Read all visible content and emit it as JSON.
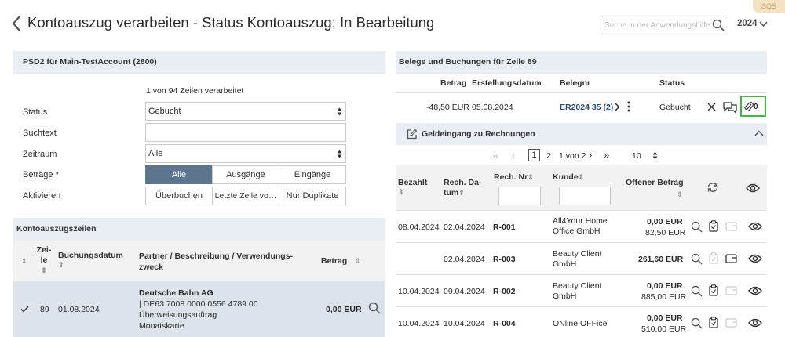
{
  "header": {
    "title": "Kontoauszug verarbeiten - Status Kontoauszug: In Bearbeitung",
    "search_placeholder": "Suche in der Anwendungshilfe",
    "year": "2024",
    "sos": "SOS"
  },
  "left_panel": {
    "title": "PSD2 für  Main-TestAccount (2800)",
    "progress": "1 von 94 Zeilen verarbeitet",
    "status_label": "Status",
    "status_value": "Gebucht",
    "suchtext_label": "Suchtext",
    "suchtext_value": "",
    "zeitraum_label": "Zeitraum",
    "zeitraum_value": "Alle",
    "betraege_label": "Beträge *",
    "betraege_options": [
      "Alle",
      "Ausgänge",
      "Eingänge"
    ],
    "betraege_selected": "Alle",
    "aktivieren_label": "Aktivieren",
    "aktivieren_buttons": [
      "Überbuchen",
      "Letzte Zeile vo…",
      "Nur Duplikate"
    ]
  },
  "kontoauszugszeilen": {
    "title": "Kontoauszugszeilen",
    "columns": {
      "zeile": "Zei-le",
      "buchungsdatum": "Buchungsdatum",
      "partner": "Partner / Beschreibung / Verwendungs-zweck",
      "betrag": "Betrag"
    },
    "row": {
      "zeile": "89",
      "datum": "01.08.2024",
      "partner": "Deutsche Bahn AG",
      "line2": "| DE63 7008 0000 0556 4789 00",
      "line3": "Überweisungsauftrag",
      "line4": "Monatskarte",
      "betrag": "0,00 EUR"
    }
  },
  "belege": {
    "title": "Belege und Buchungen für Zeile 89",
    "columns": {
      "betrag": "Betrag",
      "erstellungsdatum": "Erstellungsdatum",
      "belegnr": "Belegnr",
      "status": "Status"
    },
    "row": {
      "betrag": "-48,50 EUR",
      "datum": "05.08.2024",
      "belegnr": "ER2024 35 (2)",
      "status": "Gebucht",
      "attach_count": "0"
    }
  },
  "geldeingang": {
    "title": "Geldeingang zu Rechnungen",
    "pagination": {
      "page1": "1",
      "page2": "2",
      "page_of": "1 von 2",
      "page_size": "10"
    },
    "columns": {
      "bezahlt": "Bezahlt",
      "rech_datum": "Rech. Da-tum",
      "rech_nr": "Rech. Nr",
      "kunde": "Kunde",
      "offener_betrag": "Offener Betrag"
    },
    "rows": [
      {
        "bezahlt": "08.04.2024",
        "datum": "02.04.2024",
        "nr": "R-001",
        "kunde": "All4Your Home Office GmbH",
        "betrag": "0,00 EUR",
        "betrag2": "82,50 EUR"
      },
      {
        "bezahlt": "",
        "datum": "02.04.2024",
        "nr": "R-003",
        "kunde": "Beauty Client GmbH",
        "betrag": "261,60 EUR",
        "betrag2": ""
      },
      {
        "bezahlt": "10.04.2024",
        "datum": "09.04.2024",
        "nr": "R-002",
        "kunde": "Beauty Client GmbH",
        "betrag": "0,00 EUR",
        "betrag2": "885,00 EUR"
      },
      {
        "bezahlt": "10.04.2024",
        "datum": "10.04.2024",
        "nr": "R-004",
        "kunde": "ONline OFFice",
        "betrag": "0,00 EUR",
        "betrag2": "510,00 EUR"
      }
    ]
  },
  "colors": {
    "accent": "#5e7590",
    "link": "#2e4c7a",
    "highlight": "#3dbb3d",
    "header_bg": "#e8eef4"
  },
  "icons": [
    "chevron-left-icon",
    "search-icon",
    "chevron-down-icon",
    "check-icon",
    "chevron-right-icon",
    "more-vertical-icon",
    "close-icon",
    "chat-icon",
    "paperclip-icon",
    "edit-icon",
    "refresh-icon",
    "eye-icon",
    "clipboard-icon",
    "wallet-icon"
  ]
}
